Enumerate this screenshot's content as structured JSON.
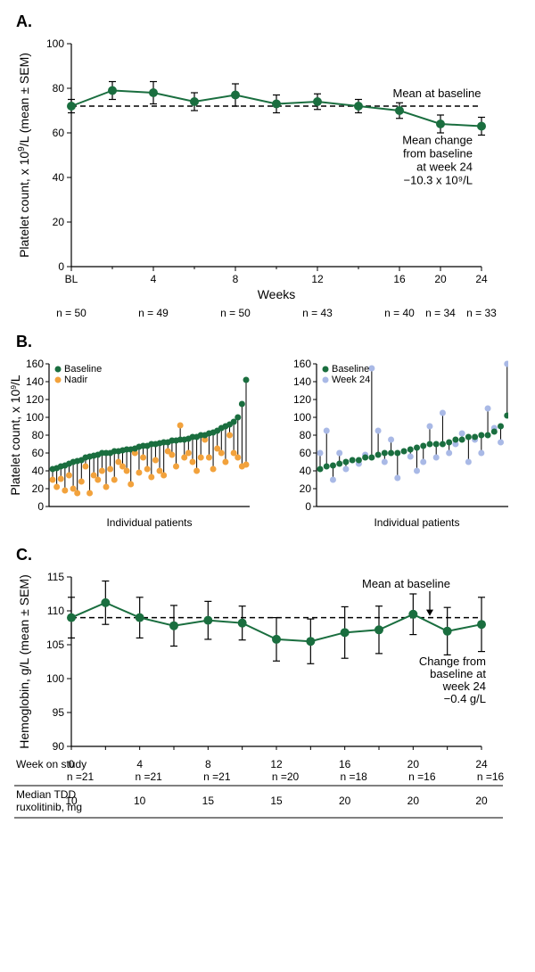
{
  "panelA": {
    "label": "A.",
    "type": "line-errorbar",
    "ylabel_line1": "Platelet count, x 10",
    "ylabel_sup": "9",
    "ylabel_line2": "/L (mean ± SEM)",
    "xlabel": "Weeks",
    "line_color": "#1a6e3f",
    "marker_color": "#1a6e3f",
    "marker_size": 5,
    "ylim": [
      0,
      100
    ],
    "ytick_step": 20,
    "x_categories": [
      "BL",
      "2",
      "4",
      "6",
      "8",
      "10",
      "12",
      "14",
      "16",
      "20",
      "24"
    ],
    "x_labels_shown": [
      "BL",
      "4",
      "8",
      "12",
      "16",
      "20",
      "24"
    ],
    "values": [
      72,
      79,
      78,
      74,
      77,
      73,
      74,
      72,
      70,
      64,
      63
    ],
    "sem": [
      3,
      4,
      5,
      4,
      5,
      4,
      3.5,
      3,
      3.5,
      4,
      4
    ],
    "baseline_value": 72,
    "baseline_label": "Mean at baseline",
    "change_annotation_lines": [
      "Mean change",
      "from baseline",
      "at week 24",
      "−10.3 x 10⁹/L"
    ],
    "n_row": [
      "n = 50",
      "n = 49",
      "n = 50",
      "n = 43",
      "n = 40",
      "n = 34",
      "n = 33"
    ]
  },
  "panelB": {
    "label": "B.",
    "type": "paired-dot",
    "ylabel_line1": "Platelet count, x 10",
    "ylabel_sup": "9",
    "ylabel_line2": "/L",
    "xlabel": "Individual patients",
    "ylim": [
      0,
      160
    ],
    "yticks": [
      0,
      20,
      40,
      60,
      80,
      100,
      120,
      140,
      160
    ],
    "baseline_color": "#1a6e3f",
    "nadir_color": "#f2a23c",
    "week24_color": "#a9b9e6",
    "marker_size": 3.5,
    "left": {
      "legend": [
        {
          "label": "Baseline",
          "color": "#1a6e3f"
        },
        {
          "label": "Nadir",
          "color": "#f2a23c"
        }
      ],
      "baseline": [
        42,
        43,
        45,
        46,
        48,
        50,
        51,
        52,
        55,
        56,
        57,
        58,
        60,
        60,
        60,
        62,
        62,
        63,
        64,
        64,
        65,
        67,
        68,
        68,
        70,
        70,
        71,
        72,
        72,
        74,
        74,
        75,
        75,
        76,
        78,
        78,
        80,
        80,
        82,
        83,
        85,
        88,
        90,
        92,
        95,
        100,
        115,
        142
      ],
      "nadir": [
        30,
        22,
        31,
        18,
        35,
        20,
        15,
        28,
        45,
        15,
        35,
        30,
        40,
        22,
        42,
        30,
        50,
        45,
        40,
        25,
        60,
        38,
        55,
        42,
        33,
        52,
        40,
        35,
        62,
        58,
        45,
        91,
        55,
        60,
        50,
        40,
        55,
        75,
        55,
        42,
        65,
        60,
        50,
        80,
        60,
        55,
        45,
        47
      ]
    },
    "right": {
      "legend": [
        {
          "label": "Baseline",
          "color": "#1a6e3f"
        },
        {
          "label": "Week 24",
          "color": "#a9b9e6"
        }
      ],
      "baseline": [
        42,
        45,
        46,
        48,
        50,
        52,
        52,
        55,
        55,
        58,
        60,
        60,
        60,
        62,
        64,
        66,
        68,
        70,
        70,
        70,
        72,
        75,
        75,
        78,
        78,
        80,
        80,
        84,
        90,
        102,
        142
      ],
      "week24": [
        60,
        85,
        30,
        60,
        42,
        52,
        48,
        58,
        155,
        85,
        50,
        75,
        32,
        62,
        56,
        40,
        50,
        90,
        55,
        105,
        60,
        70,
        82,
        50,
        75,
        60,
        110,
        88,
        72,
        160,
        125
      ]
    }
  },
  "panelC": {
    "label": "C.",
    "type": "line-errorbar",
    "ylabel": "Hemoglobin, g/L (mean ± SEM)",
    "line_color": "#1a6e3f",
    "marker_color": "#1a6e3f",
    "marker_size": 5,
    "ylim": [
      90,
      115
    ],
    "yticks": [
      90,
      95,
      100,
      105,
      110,
      115
    ],
    "x_positions": [
      0,
      2,
      4,
      6,
      8,
      10,
      12,
      14,
      16,
      18,
      20,
      22,
      24
    ],
    "x_labels_shown": [
      "0",
      "4",
      "8",
      "12",
      "16",
      "20",
      "24"
    ],
    "values": [
      109.0,
      111.2,
      109.0,
      107.8,
      108.6,
      108.2,
      105.8,
      105.5,
      106.8,
      107.2,
      109.5,
      107.0,
      108.0
    ],
    "sem": [
      3.0,
      3.2,
      3.0,
      3.0,
      2.8,
      2.5,
      3.2,
      3.3,
      3.8,
      3.5,
      3.0,
      3.5,
      4.0
    ],
    "baseline_value": 109.0,
    "baseline_label": "Mean at baseline",
    "change_annotation_lines": [
      "Change from",
      "baseline at",
      "week 24",
      "−0.4 g/L"
    ],
    "table": {
      "row1_label": "Week on study",
      "row1_vals": [
        "0",
        "4",
        "8",
        "12",
        "16",
        "20",
        "24"
      ],
      "n_row": [
        "n =21",
        "n =21",
        "n =21",
        "n =20",
        "n =18",
        "n =16",
        "n =16"
      ],
      "row2_label_l1": "Median TDD",
      "row2_label_l2": "ruxolitinib, mg",
      "row2_vals": [
        "10",
        "10",
        "15",
        "15",
        "20",
        "20",
        "20"
      ]
    }
  }
}
